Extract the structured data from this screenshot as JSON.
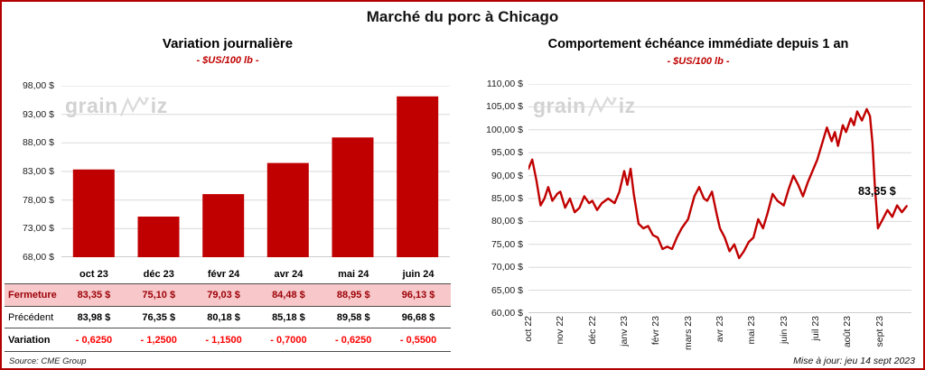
{
  "page": {
    "title": "Marché du porc à Chicago",
    "source": "Source: CME Group",
    "updated": "Mise à jour: jeu 14 sept 2023",
    "watermark": {
      "grain": "grain",
      "iz": "iz"
    }
  },
  "left": {
    "title": "Variation journalière",
    "subtitle": "- $US/100 lb -",
    "table": {
      "columns": [
        "oct 23",
        "déc 23",
        "févr 24",
        "avr 24",
        "mai 24",
        "juin 24"
      ],
      "rows": [
        {
          "label": "Fermeture",
          "values": [
            "83,35  $",
            "75,10  $",
            "79,03  $",
            "84,48  $",
            "88,95  $",
            "96,13  $"
          ]
        },
        {
          "label": "Précédent",
          "values": [
            "83,98  $",
            "76,35  $",
            "80,18  $",
            "85,18  $",
            "89,58  $",
            "96,68  $"
          ]
        },
        {
          "label": "Variation",
          "values": [
            "- 0,6250",
            "- 1,2500",
            "- 1,1500",
            "- 0,7000",
            "- 0,6250",
            "- 0,5500"
          ]
        }
      ]
    }
  },
  "right": {
    "title": "Comportement échéance immédiate depuis 1 an",
    "subtitle": "- $US/100 lb -",
    "annotation": "83,35 $"
  },
  "chart_data": [
    {
      "type": "bar",
      "title": "Variation journalière",
      "ylabel": "$US/100 lb",
      "categories": [
        "oct 23",
        "déc 23",
        "févr 24",
        "avr 24",
        "mai 24",
        "juin 24"
      ],
      "values": [
        83.35,
        75.1,
        79.03,
        84.48,
        88.95,
        96.13
      ],
      "ylim": [
        68,
        98
      ],
      "ytick_labels": [
        "98,00 $",
        "93,00 $",
        "88,00 $",
        "83,00 $",
        "78,00 $",
        "73,00 $",
        "68,00 $"
      ],
      "bar_color": "#c00000",
      "grid": true
    },
    {
      "type": "line",
      "title": "Comportement échéance immédiate depuis 1 an",
      "ylabel": "$US/100 lb",
      "x_months": [
        "oct 22",
        "nov 22",
        "déc 22",
        "janv 23",
        "févr 23",
        "mars 23",
        "avr 23",
        "mai 23",
        "juin 23",
        "juil 23",
        "août 23",
        "sept 23"
      ],
      "x_range": [
        0,
        12
      ],
      "ylim": [
        60,
        110
      ],
      "ytick_labels": [
        "110,00 $",
        "105,00 $",
        "100,00 $",
        "95,00 $",
        "90,00 $",
        "85,00 $",
        "80,00 $",
        "75,00 $",
        "70,00 $",
        "65,00 $",
        "60,00 $"
      ],
      "line_color": "#c00000",
      "last_value": 83.35,
      "last_value_label": "83,35 $",
      "grid": true,
      "points": [
        [
          0.0,
          91.5
        ],
        [
          0.12,
          93.5
        ],
        [
          0.25,
          89.0
        ],
        [
          0.38,
          83.5
        ],
        [
          0.5,
          85.0
        ],
        [
          0.62,
          87.5
        ],
        [
          0.75,
          84.5
        ],
        [
          0.9,
          86.0
        ],
        [
          1.0,
          86.5
        ],
        [
          1.15,
          83.0
        ],
        [
          1.3,
          85.0
        ],
        [
          1.45,
          82.0
        ],
        [
          1.6,
          83.0
        ],
        [
          1.75,
          85.5
        ],
        [
          1.9,
          84.0
        ],
        [
          2.0,
          84.5
        ],
        [
          2.15,
          82.5
        ],
        [
          2.3,
          84.0
        ],
        [
          2.5,
          85.0
        ],
        [
          2.7,
          84.0
        ],
        [
          2.85,
          86.5
        ],
        [
          3.0,
          91.0
        ],
        [
          3.1,
          88.0
        ],
        [
          3.2,
          91.5
        ],
        [
          3.3,
          86.0
        ],
        [
          3.45,
          79.5
        ],
        [
          3.6,
          78.5
        ],
        [
          3.75,
          79.0
        ],
        [
          3.9,
          77.0
        ],
        [
          4.05,
          76.5
        ],
        [
          4.2,
          74.0
        ],
        [
          4.35,
          74.5
        ],
        [
          4.5,
          74.0
        ],
        [
          4.65,
          76.5
        ],
        [
          4.8,
          78.5
        ],
        [
          5.0,
          80.5
        ],
        [
          5.1,
          83.0
        ],
        [
          5.2,
          85.5
        ],
        [
          5.35,
          87.5
        ],
        [
          5.5,
          85.0
        ],
        [
          5.6,
          84.5
        ],
        [
          5.75,
          86.5
        ],
        [
          5.9,
          81.5
        ],
        [
          6.0,
          78.5
        ],
        [
          6.15,
          76.5
        ],
        [
          6.3,
          73.5
        ],
        [
          6.45,
          75.0
        ],
        [
          6.6,
          72.0
        ],
        [
          6.75,
          73.5
        ],
        [
          6.9,
          75.5
        ],
        [
          7.05,
          76.5
        ],
        [
          7.2,
          80.5
        ],
        [
          7.35,
          78.5
        ],
        [
          7.5,
          82.0
        ],
        [
          7.65,
          86.0
        ],
        [
          7.8,
          84.5
        ],
        [
          8.0,
          83.5
        ],
        [
          8.15,
          87.0
        ],
        [
          8.3,
          90.0
        ],
        [
          8.45,
          88.0
        ],
        [
          8.6,
          85.5
        ],
        [
          8.75,
          88.5
        ],
        [
          8.9,
          91.0
        ],
        [
          9.05,
          93.5
        ],
        [
          9.2,
          97.0
        ],
        [
          9.35,
          100.5
        ],
        [
          9.5,
          97.5
        ],
        [
          9.6,
          99.5
        ],
        [
          9.7,
          96.5
        ],
        [
          9.85,
          101.0
        ],
        [
          9.95,
          99.5
        ],
        [
          10.1,
          102.5
        ],
        [
          10.2,
          101.0
        ],
        [
          10.3,
          104.0
        ],
        [
          10.45,
          102.0
        ],
        [
          10.6,
          104.5
        ],
        [
          10.7,
          103.0
        ],
        [
          10.78,
          97.0
        ],
        [
          10.85,
          88.0
        ],
        [
          10.95,
          78.5
        ],
        [
          11.1,
          80.5
        ],
        [
          11.25,
          82.5
        ],
        [
          11.4,
          81.0
        ],
        [
          11.55,
          83.5
        ],
        [
          11.7,
          82.0
        ],
        [
          11.85,
          83.35
        ]
      ]
    }
  ]
}
